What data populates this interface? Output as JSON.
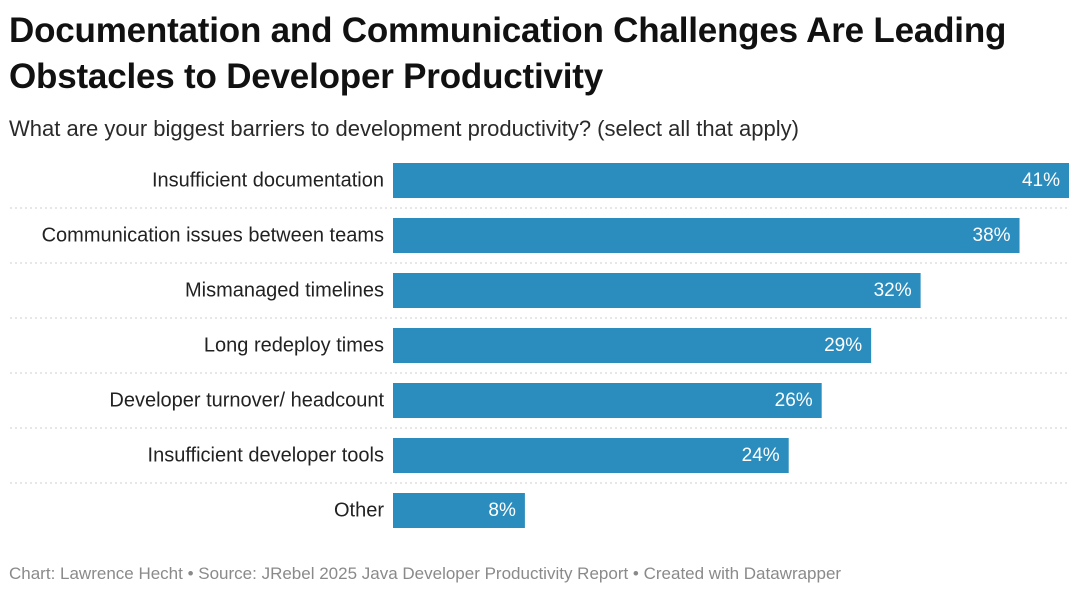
{
  "header": {
    "title": "Documentation and Communication Challenges Are Leading Obstacles to Developer Productivity",
    "subtitle": "What are your biggest barriers to development productivity? (select all that apply)"
  },
  "footer": {
    "credit": "Chart: Lawrence Hecht • Source: JRebel 2025 Java Developer Productivity Report • Created with Datawrapper"
  },
  "colors": {
    "bar": "#2b8cbe",
    "separator": "#cfcfcf"
  },
  "chart_data": {
    "type": "bar",
    "orientation": "horizontal",
    "title": "Documentation and Communication Challenges Are Leading Obstacles to Developer Productivity",
    "subtitle": "What are your biggest barriers to development productivity? (select all that apply)",
    "categories": [
      "Insufficient documentation",
      "Communication issues between teams",
      "Mismanaged timelines",
      "Long redeploy times",
      "Developer turnover/ headcount",
      "Insufficient developer tools",
      "Other"
    ],
    "values": [
      41,
      38,
      32,
      29,
      26,
      24,
      8
    ],
    "value_labels": [
      "41%",
      "38%",
      "32%",
      "29%",
      "26%",
      "24%",
      "8%"
    ],
    "unit": "%",
    "xlim": [
      0,
      41
    ],
    "grid": false,
    "legend": "none"
  }
}
